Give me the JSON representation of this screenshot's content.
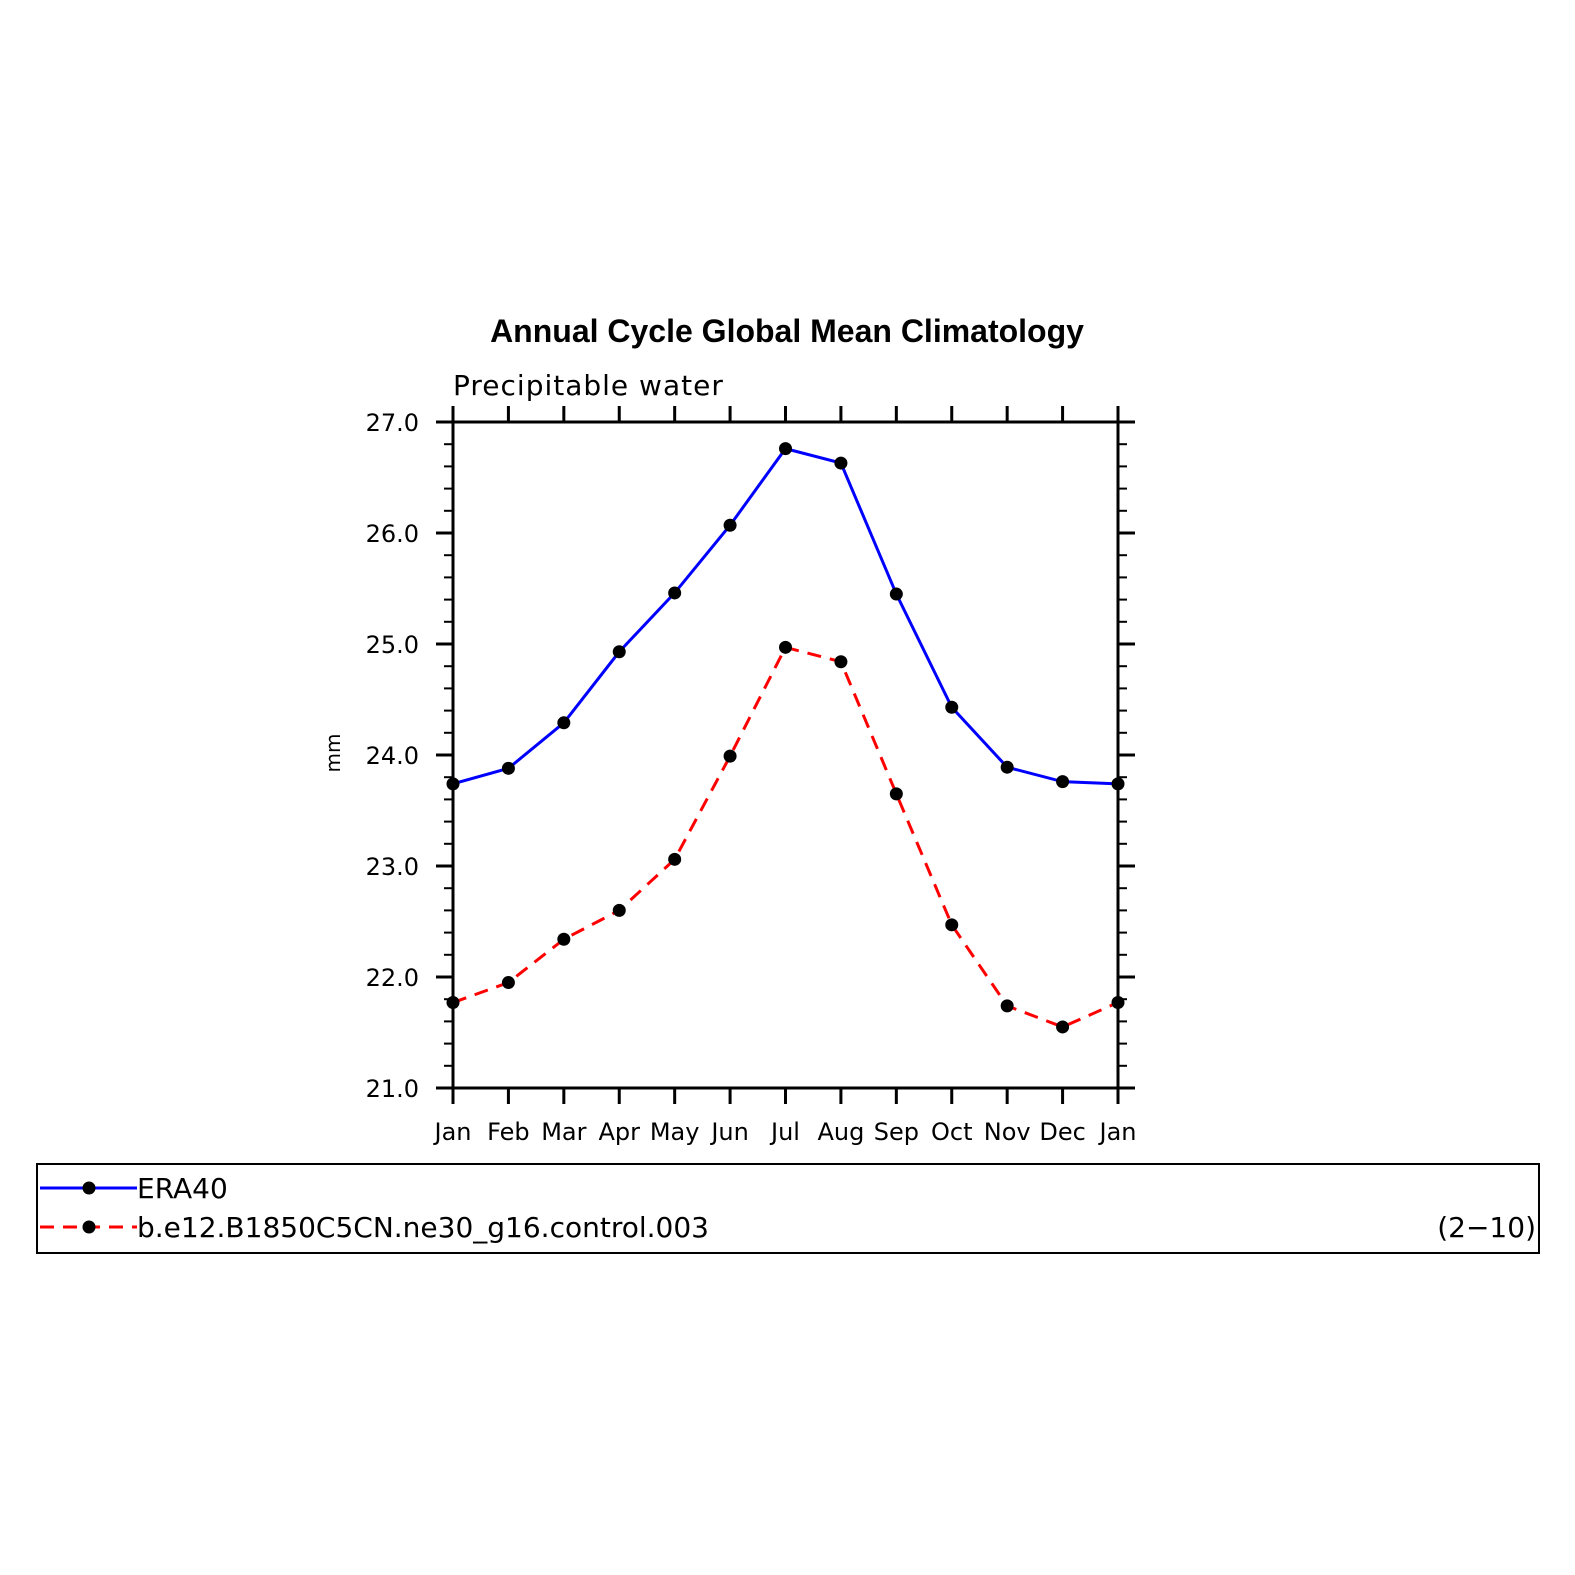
{
  "chart_data": {
    "type": "line",
    "title": "Annual Cycle Global Mean Climatology",
    "subtitle": "Precipitable water",
    "ylabel": "mm",
    "xlabel": "",
    "categories": [
      "Jan",
      "Feb",
      "Mar",
      "Apr",
      "May",
      "Jun",
      "Jul",
      "Aug",
      "Sep",
      "Oct",
      "Nov",
      "Dec",
      "Jan"
    ],
    "ylim": [
      21.0,
      27.0
    ],
    "yticks": [
      "21.0",
      "22.0",
      "23.0",
      "24.0",
      "25.0",
      "26.0",
      "27.0"
    ],
    "grid": false,
    "legend_position": "bottom",
    "series": [
      {
        "name": "ERA40",
        "color": "#0000ff",
        "dash": "solid",
        "marker": "filled-circle",
        "values": [
          23.74,
          23.88,
          24.29,
          24.93,
          25.46,
          26.07,
          26.76,
          26.63,
          25.45,
          24.43,
          23.89,
          23.76,
          23.74
        ]
      },
      {
        "name": "b.e12.B1850C5CN.ne30_g16.control.003",
        "color": "#ff0000",
        "dash": "dashed",
        "marker": "filled-circle",
        "values": [
          21.77,
          21.95,
          22.34,
          22.6,
          23.06,
          23.99,
          24.97,
          24.84,
          23.65,
          22.47,
          21.74,
          21.55,
          21.77
        ]
      }
    ],
    "legend_note": "(2−10)"
  }
}
